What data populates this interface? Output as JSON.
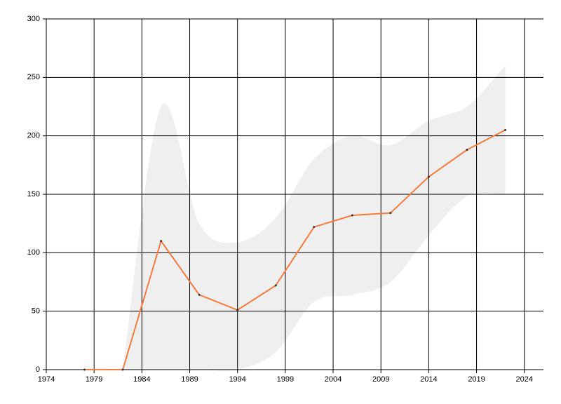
{
  "chart_data": {
    "type": "line",
    "x": [
      1978,
      1982,
      1986,
      1990,
      1994,
      1998,
      2002,
      2006,
      2010,
      2014,
      2018,
      2022
    ],
    "series": [
      {
        "color": "#f47b3c",
        "values": [
          0,
          0,
          110,
          64,
          51,
          72,
          122,
          132,
          134,
          165,
          188,
          205
        ]
      }
    ],
    "band": {
      "color": "#efefef",
      "x": [
        1982,
        1986,
        1990,
        1994,
        1998,
        2002,
        2006,
        2010,
        2014,
        2018,
        2022
      ],
      "upper": [
        0,
        225,
        125,
        109,
        130,
        180,
        200,
        192,
        213,
        225,
        260
      ],
      "lower": [
        0,
        0,
        0,
        0,
        15,
        58,
        64,
        75,
        115,
        148,
        150
      ]
    },
    "xlim": [
      1974,
      2026
    ],
    "ylim": [
      0,
      300
    ],
    "xticks": [
      1974,
      1979,
      1984,
      1989,
      1994,
      1999,
      2004,
      2009,
      2014,
      2019,
      2024
    ],
    "yticks": [
      0,
      50,
      100,
      150,
      200,
      250,
      300
    ],
    "grid": true
  }
}
